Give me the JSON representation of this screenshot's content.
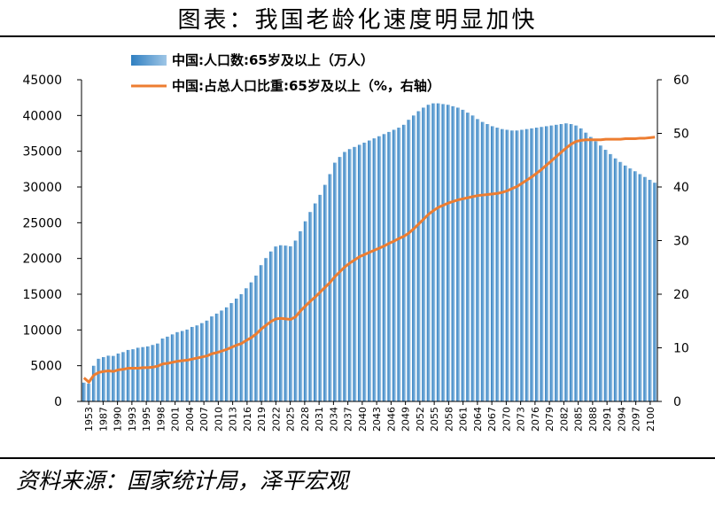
{
  "title": "图表：我国老龄化速度明显加快",
  "source": "资料来源：国家统计局，泽平宏观",
  "colors": {
    "bar": "#2f7fc1",
    "bar_light": "#9fc6e6",
    "line": "#ed7d31",
    "axis": "#000000"
  },
  "chart_data": {
    "type": "bar",
    "combo": "bar + line (dual axis)",
    "legend_position": "top",
    "grid": false,
    "x_tick_labels": [
      "1953",
      "1987",
      "1990",
      "1993",
      "1995",
      "1998",
      "2001",
      "2004",
      "2007",
      "2010",
      "2013",
      "2016",
      "2019",
      "2022",
      "2025",
      "2028",
      "2031",
      "2034",
      "2037",
      "2040",
      "2043",
      "2046",
      "2049",
      "2052",
      "2055",
      "2058",
      "2061",
      "2064",
      "2067",
      "2070",
      "2073",
      "2076",
      "2079",
      "2082",
      "2085",
      "2088",
      "2091",
      "2094",
      "2097",
      "2100"
    ],
    "left_axis": {
      "ylim": [
        0,
        45000
      ],
      "ticks": [
        0,
        5000,
        10000,
        15000,
        20000,
        25000,
        30000,
        35000,
        40000,
        45000
      ]
    },
    "right_axis": {
      "ylim": [
        0,
        60
      ],
      "ticks": [
        0,
        10,
        20,
        30,
        40,
        50,
        60
      ]
    },
    "series": [
      {
        "name": "中国:人口数:65岁及以上（万人）",
        "type": "bar",
        "axis": "left",
        "years": [
          1953,
          1964,
          1982,
          1987,
          1988,
          1989,
          1990,
          1991,
          1992,
          1993,
          1994,
          1995,
          1996,
          1997,
          1998,
          1999,
          2000,
          2001,
          2002,
          2003,
          2004,
          2005,
          2006,
          2007,
          2008,
          2009,
          2010,
          2011,
          2012,
          2013,
          2014,
          2015,
          2016,
          2017,
          2018,
          2019,
          2020,
          2021,
          2022,
          2023,
          2024,
          2025,
          2026,
          2027,
          2028,
          2029,
          2030,
          2031,
          2032,
          2033,
          2034,
          2035,
          2036,
          2037,
          2038,
          2039,
          2040,
          2041,
          2042,
          2043,
          2044,
          2045,
          2046,
          2047,
          2048,
          2049,
          2050,
          2051,
          2052,
          2053,
          2054,
          2055,
          2056,
          2057,
          2058,
          2059,
          2060,
          2061,
          2062,
          2063,
          2064,
          2065,
          2066,
          2067,
          2068,
          2069,
          2070,
          2071,
          2072,
          2073,
          2074,
          2075,
          2076,
          2077,
          2078,
          2079,
          2080,
          2081,
          2082,
          2083,
          2084,
          2085,
          2086,
          2087,
          2088,
          2089,
          2090,
          2091,
          2092,
          2093,
          2094,
          2095,
          2096,
          2097,
          2098,
          2099,
          2100
        ],
        "values": [
          2632,
          2500,
          4991,
          5968,
          6200,
          6400,
          6368,
          6700,
          6900,
          7200,
          7300,
          7510,
          7600,
          7700,
          7900,
          8100,
          8800,
          9062,
          9377,
          9692,
          9857,
          10055,
          10419,
          10636,
          10956,
          11307,
          11894,
          12288,
          12714,
          13161,
          13755,
          14386,
          15003,
          15831,
          16658,
          17603,
          19064,
          20056,
          20978,
          21676,
          21850,
          21800,
          21700,
          22500,
          23800,
          25200,
          26500,
          27700,
          28900,
          30300,
          31800,
          33400,
          34200,
          34900,
          35300,
          35600,
          35900,
          36200,
          36500,
          36800,
          37100,
          37400,
          37700,
          38000,
          38300,
          38700,
          39400,
          40000,
          40600,
          41100,
          41500,
          41700,
          41700,
          41600,
          41500,
          41300,
          41100,
          40800,
          40400,
          40000,
          39500,
          39100,
          38800,
          38500,
          38300,
          38100,
          38000,
          37900,
          37900,
          38000,
          38100,
          38200,
          38300,
          38400,
          38500,
          38600,
          38700,
          38800,
          38900,
          38800,
          38600,
          38200,
          37600,
          37000,
          36400,
          35800,
          35200,
          34600,
          34000,
          33500,
          33000,
          32600,
          32200,
          31800,
          31400,
          31000,
          30600
        ]
      },
      {
        "name": "中国:占总人口比重:65岁及以上（%，右轴）",
        "type": "line",
        "axis": "right",
        "values": [
          4.4,
          3.6,
          4.9,
          5.4,
          5.6,
          5.7,
          5.6,
          5.9,
          6.0,
          6.2,
          6.2,
          6.2,
          6.3,
          6.3,
          6.4,
          6.6,
          7.0,
          7.1,
          7.3,
          7.5,
          7.6,
          7.7,
          7.9,
          8.1,
          8.3,
          8.5,
          8.9,
          9.1,
          9.4,
          9.7,
          10.1,
          10.5,
          10.8,
          11.4,
          11.9,
          12.6,
          13.5,
          14.2,
          14.9,
          15.4,
          15.5,
          15.4,
          15.3,
          15.8,
          16.9,
          17.8,
          18.7,
          19.5,
          20.4,
          21.3,
          22.2,
          23.3,
          24.2,
          25.1,
          25.8,
          26.4,
          27.0,
          27.4,
          27.8,
          28.2,
          28.6,
          29.0,
          29.5,
          29.9,
          30.4,
          30.8,
          31.4,
          32.2,
          33.1,
          34.0,
          34.9,
          35.6,
          36.2,
          36.6,
          37.0,
          37.3,
          37.6,
          37.8,
          38.0,
          38.2,
          38.4,
          38.5,
          38.6,
          38.7,
          38.8,
          39.0,
          39.3,
          39.7,
          40.1,
          40.7,
          41.3,
          41.9,
          42.6,
          43.3,
          44.1,
          44.9,
          45.7,
          46.5,
          47.3,
          48.0,
          48.5,
          48.7,
          48.8,
          48.8,
          48.8,
          48.8,
          48.9,
          48.9,
          48.9,
          48.9,
          49.0,
          49.0,
          49.0,
          49.1,
          49.1,
          49.2,
          49.3
        ]
      }
    ]
  }
}
